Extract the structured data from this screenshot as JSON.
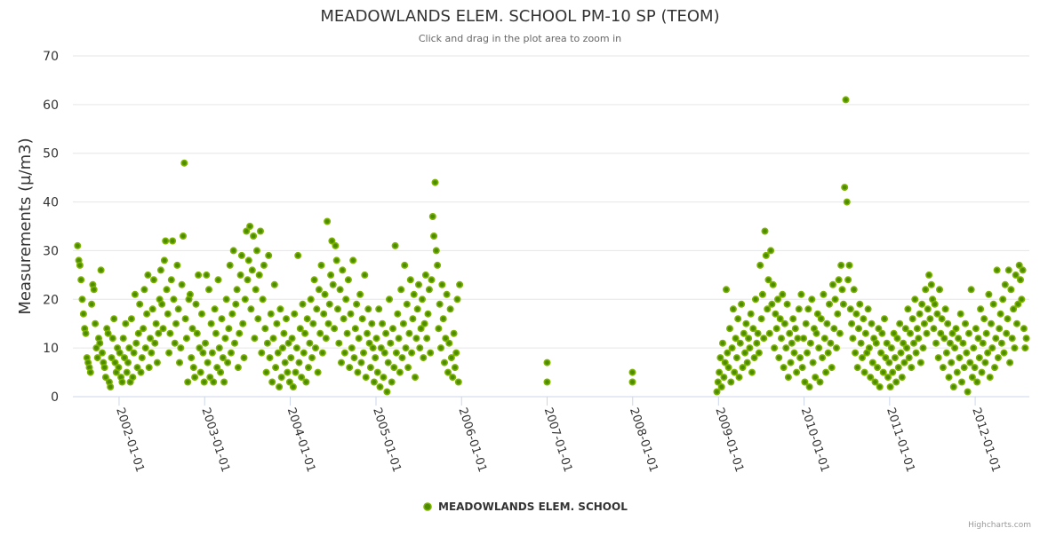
{
  "chart_data": {
    "type": "scatter",
    "title": "MEADOWLANDS ELEM. SCHOOL PM-10 SP (TEOM)",
    "subtitle": "Click and drag in the plot area to zoom in",
    "xlabel": "",
    "ylabel": "Measurements (µ/m3)",
    "ylim": [
      0,
      70
    ],
    "yticks": [
      "0",
      "10",
      "20",
      "30",
      "40",
      "50",
      "60",
      "70"
    ],
    "xlim": [
      "2001-06-18",
      "2012-08-19"
    ],
    "xticks": [
      "2002-01-01",
      "2003-01-01",
      "2004-01-01",
      "2005-01-01",
      "2006-01-01",
      "2007-01-01",
      "2008-01-01",
      "2009-01-01",
      "2010-01-01",
      "2011-01-01",
      "2012-01-01"
    ],
    "grid": true,
    "legend": {
      "position": "bottom-center",
      "label": "MEADOWLANDS ELEM. SCHOOL"
    },
    "credits": "Highcharts.com",
    "colors": {
      "marker_fill": "#7cb300",
      "marker_stroke": "#4d8c00",
      "grid": "#e6e6e6",
      "axis": "#ccd6eb"
    },
    "series": [
      {
        "name": "MEADOWLANDS ELEM. SCHOOL",
        "segments": [
          {
            "start": "2001-07-08",
            "interval_days": 5,
            "values": [
              31,
              28,
              27,
              24,
              20,
              17,
              14,
              13,
              8,
              7,
              6,
              5,
              19,
              23,
              22,
              15,
              10,
              8,
              12,
              11,
              26,
              9,
              7,
              6,
              4,
              14,
              13,
              3,
              2,
              8,
              12,
              16,
              7,
              5,
              10,
              6,
              9,
              4,
              3,
              12,
              8,
              15,
              5,
              7,
              10,
              3,
              16,
              4,
              9,
              21,
              11,
              6,
              13,
              19,
              5,
              8,
              14,
              22,
              10,
              17,
              25,
              6,
              12,
              9,
              18,
              24,
              11,
              15,
              7,
              13,
              20,
              26,
              19,
              14,
              28,
              32,
              22,
              17,
              9,
              13,
              24,
              32,
              20,
              11,
              15,
              27,
              18,
              7,
              10,
              23,
              33,
              48,
              16,
              12,
              3,
              20,
              21,
              8,
              14,
              6,
              4,
              19,
              13,
              25,
              10,
              5,
              17,
              9,
              3,
              11,
              25,
              7,
              22,
              4,
              15,
              9,
              3,
              18,
              13,
              6,
              24,
              10,
              5,
              16,
              8,
              3,
              12,
              20,
              7,
              14,
              27,
              9,
              17,
              30,
              11,
              19,
              22,
              6,
              13,
              25,
              29,
              15,
              8,
              20,
              34,
              24,
              28,
              35,
              18,
              26,
              33,
              12,
              22,
              30,
              16,
              25,
              34,
              9,
              20,
              27,
              14,
              5,
              11,
              29,
              8,
              17,
              3,
              12,
              23,
              6,
              15,
              9,
              2,
              18,
              4,
              10,
              13,
              7,
              16,
              5,
              11,
              3,
              8,
              12,
              2,
              17,
              5,
              10,
              29,
              7,
              14,
              4,
              19,
              9,
              13,
              3,
              16,
              6,
              11,
              20,
              8,
              15,
              24,
              10,
              18,
              5,
              22,
              13,
              27,
              9,
              17,
              21,
              12,
              36,
              15,
              19,
              25,
              32,
              23,
              14,
              31,
              28,
              18,
              11,
              22,
              7,
              26,
              16,
              9,
              20,
              13,
              24,
              6,
              17,
              10,
              28,
              8,
              14,
              19,
              5,
              12,
              21,
              7,
              16,
              9,
              25,
              4,
              13,
              18,
              11,
              6,
              15,
              10,
              3,
              8,
              12,
              5,
              18,
              2,
              10,
              15,
              4,
              9,
              13,
              1,
              7,
              20,
              11,
              3,
              14,
              6,
              31,
              9,
              17,
              12,
              5,
              22,
              8,
              15,
              27,
              10,
              19,
              6,
              13,
              24,
              9,
              16,
              21,
              4,
              12,
              18,
              23,
              10,
              14,
              20,
              8,
              15,
              25,
              12,
              17,
              22,
              9,
              24,
              37,
              33,
              44,
              30,
              27,
              14,
              19,
              10,
              23,
              16,
              7,
              12,
              21,
              5,
              11,
              18,
              8,
              4,
              13,
              6,
              9,
              20,
              3,
              23
            ]
          },
          {
            "points": [
              [
                "2007-01-01",
                7
              ],
              [
                "2007-01-01",
                3
              ],
              [
                "2007-12-31",
                5
              ],
              [
                "2007-12-31",
                3
              ]
            ]
          },
          {
            "start": "2008-12-25",
            "interval_days": 5,
            "values": [
              1,
              3,
              5,
              8,
              2,
              11,
              4,
              7,
              22,
              9,
              6,
              14,
              3,
              10,
              18,
              5,
              12,
              8,
              16,
              4,
              11,
              19,
              6,
              13,
              9,
              15,
              7,
              12,
              10,
              17,
              5,
              14,
              8,
              20,
              11,
              13,
              9,
              27,
              16,
              21,
              12,
              34,
              29,
              18,
              24,
              13,
              30,
              19,
              23,
              10,
              17,
              14,
              20,
              8,
              16,
              12,
              21,
              6,
              15,
              10,
              19,
              4,
              13,
              7,
              11,
              16,
              9,
              14,
              5,
              12,
              18,
              8,
              21,
              6,
              12,
              3,
              15,
              9,
              18,
              2,
              11,
              20,
              7,
              14,
              4,
              13,
              17,
              10,
              3,
              16,
              8,
              21,
              12,
              5,
              15,
              9,
              19,
              11,
              6,
              23,
              14,
              20,
              10,
              17,
              24,
              13,
              27,
              22,
              19,
              43,
              61,
              40,
              24,
              27,
              18,
              15,
              12,
              22,
              9,
              17,
              6,
              14,
              19,
              11,
              8,
              16,
              5,
              13,
              9,
              18,
              10,
              4,
              15,
              7,
              12,
              3,
              11,
              6,
              14,
              2,
              9,
              13,
              5,
              16,
              8,
              11,
              4,
              7,
              2,
              10,
              5,
              13,
              8,
              3,
              12,
              6,
              15,
              9,
              4,
              11,
              7,
              14,
              10,
              18,
              8,
              13,
              6,
              16,
              11,
              20,
              9,
              14,
              12,
              17,
              7,
              19,
              10,
              15,
              22,
              13,
              18,
              25,
              16,
              23,
              20,
              14,
              19,
              11,
              17,
              8,
              22,
              13,
              16,
              6,
              12,
              18,
              9,
              15,
              4,
              11,
              7,
              13,
              2,
              10,
              14,
              5,
              12,
              8,
              17,
              3,
              11,
              6,
              15,
              9,
              1,
              13,
              7,
              22,
              4,
              10,
              6,
              14,
              3,
              12,
              8,
              18,
              5,
              11,
              16,
              7,
              13,
              9,
              21,
              4,
              15,
              10,
              19,
              6,
              12,
              26,
              8,
              14,
              17,
              11,
              20,
              9,
              23,
              13,
              16,
              26,
              7,
              22,
              12,
              18,
              10,
              25,
              15,
              19,
              27,
              24,
              20,
              26,
              14,
              10,
              12
            ]
          }
        ]
      }
    ]
  }
}
